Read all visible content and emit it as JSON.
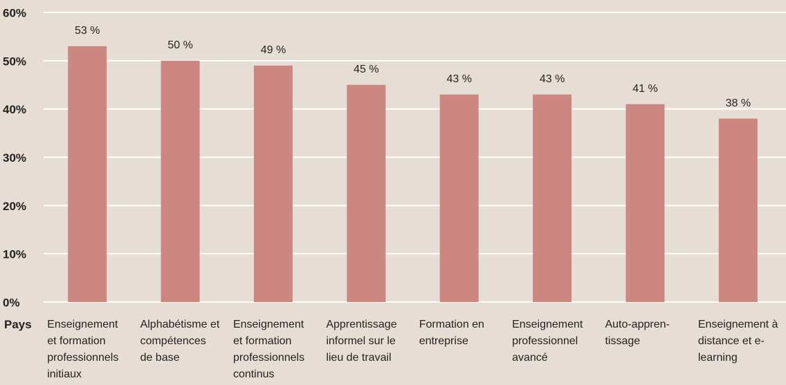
{
  "chart_data": {
    "type": "bar",
    "x_label": "Pays",
    "categories": [
      "Enseignement et formation professionnels initiaux",
      "Alphabétisme et compétences de base",
      "Enseignement et formation professionnels continus",
      "Apprentissage informel sur le lieu de travail",
      "Formation en entreprise",
      "Enseignement professionnel avancé",
      "Auto-appren-tissage",
      "Enseignement à distance et e-learning"
    ],
    "values": [
      53,
      50,
      49,
      45,
      43,
      43,
      41,
      38
    ],
    "value_labels": [
      "53 %",
      "50 %",
      "49 %",
      "45 %",
      "43 %",
      "43 %",
      "41 %",
      "38 %"
    ],
    "color": "#cc8880",
    "ylim": [
      0,
      60
    ],
    "yticks": [
      {
        "value": 0,
        "label": "0%"
      },
      {
        "value": 10,
        "label": "10%"
      },
      {
        "value": 20,
        "label": "20%"
      },
      {
        "value": 30,
        "label": "30%"
      },
      {
        "value": 40,
        "label": "40%"
      },
      {
        "value": 50,
        "label": "50%"
      },
      {
        "value": 60,
        "label": "60%"
      }
    ],
    "grid": true
  }
}
